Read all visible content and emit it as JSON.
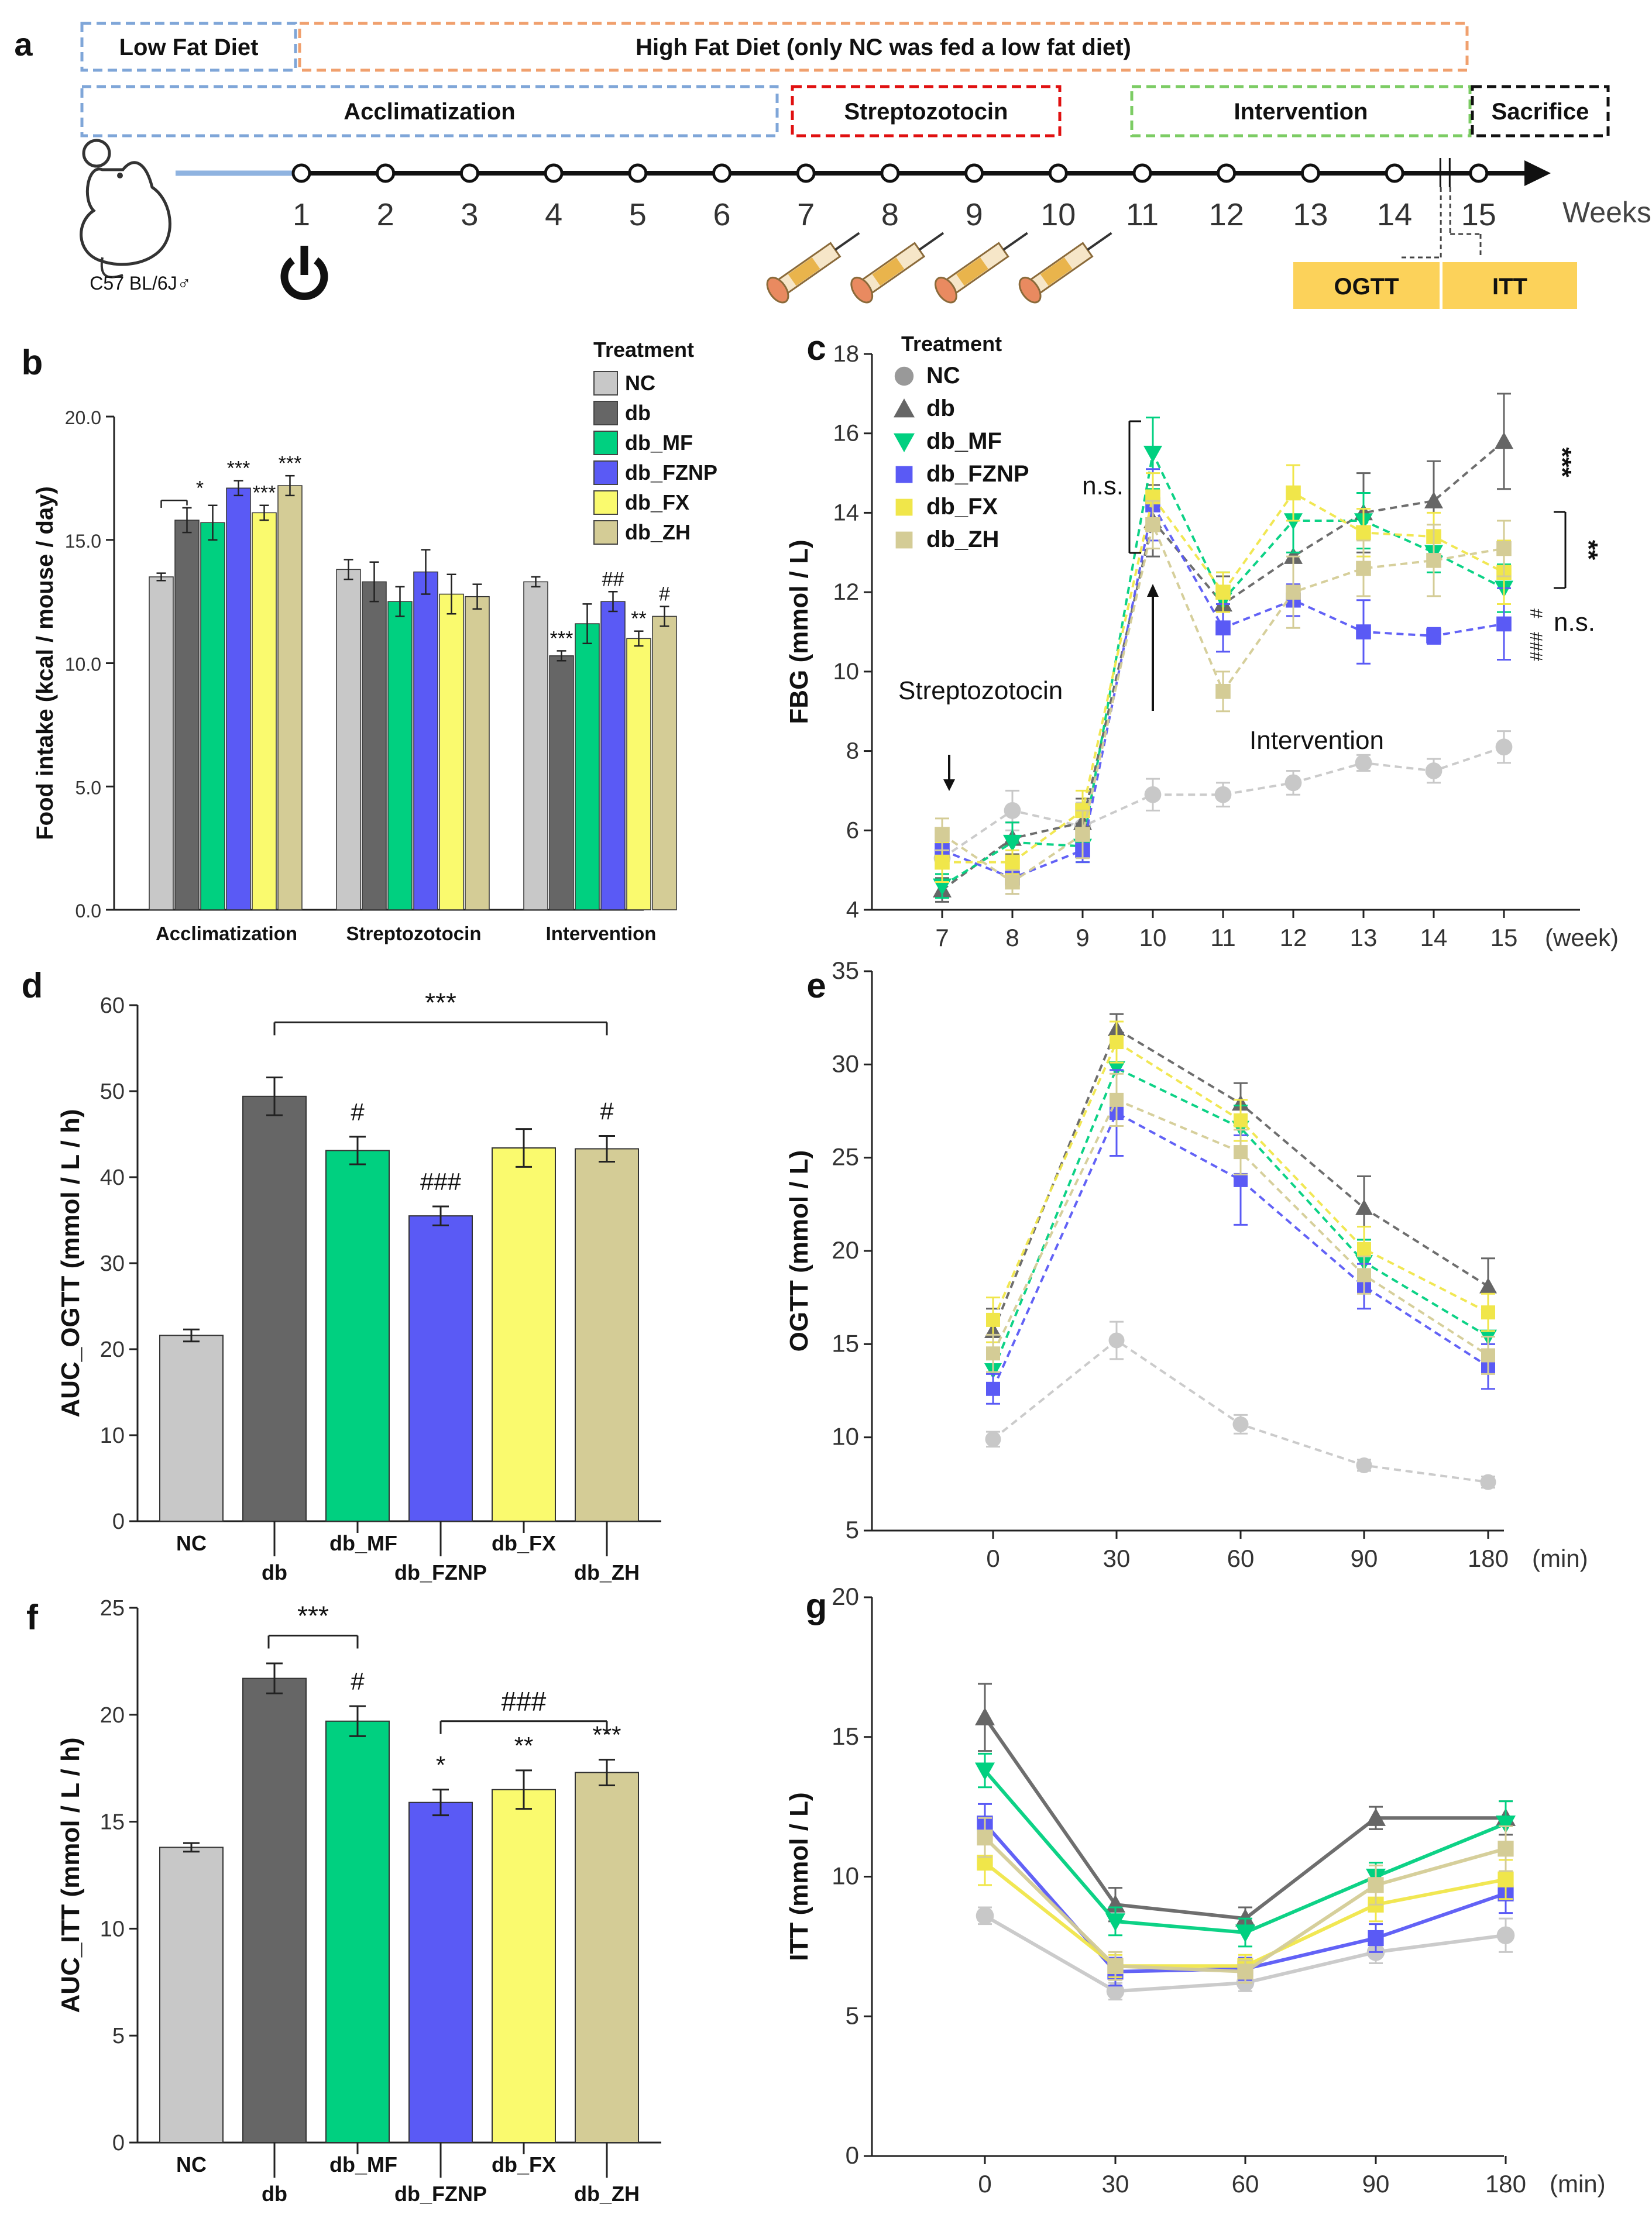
{
  "colors": {
    "NC": "#c8c8c8",
    "db": "#666666",
    "db_MF": "#00d080",
    "db_FZNP": "#5a5af5",
    "db_FX": "#fafa6e",
    "db_ZH": "#d4cc96",
    "blue_box": "#7fa6d8",
    "orange_box": "#f0a06e",
    "red_box": "#e01010",
    "green_box": "#7ccc64",
    "black_box": "#111111",
    "yellow_box": "#fcd25a"
  },
  "legend": {
    "title": "Treatment",
    "groups": [
      "NC",
      "db",
      "db_MF",
      "db_FZNP",
      "db_FX",
      "db_ZH"
    ]
  },
  "timeline": {
    "panel": "a",
    "boxes": {
      "low_fat": "Low Fat Diet",
      "high_fat": "High Fat Diet (only NC was fed a low fat diet)",
      "acclimatization": "Acclimatization",
      "streptozotocin": "Streptozotocin",
      "intervention": "Intervention",
      "sacrifice": "Sacrifice"
    },
    "weeks": [
      "1",
      "2",
      "3",
      "4",
      "5",
      "6",
      "7",
      "8",
      "9",
      "10",
      "11",
      "12",
      "13",
      "14",
      "15"
    ],
    "weeks_label": "Weeks",
    "mouse_label": "C57 BL/6J♂",
    "ogtt": "OGTT",
    "itt": "ITT",
    "injection_weeks": [
      7,
      8,
      9,
      10
    ]
  },
  "chart_data": [
    {
      "panel": "b",
      "type": "bar",
      "ylabel": "Food intake (kcal / mouse / day)",
      "ylim": [
        0,
        20
      ],
      "yticks": [
        "0.0",
        "5.0",
        "10.0",
        "15.0",
        "20.0"
      ],
      "categories": [
        "Acclimatization",
        "Streptozotocin",
        "Intervention"
      ],
      "series": [
        {
          "name": "NC",
          "values": [
            13.5,
            13.8,
            13.3
          ],
          "err": [
            0.15,
            0.4,
            0.2
          ]
        },
        {
          "name": "db",
          "values": [
            15.8,
            13.3,
            10.3
          ],
          "err": [
            0.5,
            0.8,
            0.2
          ]
        },
        {
          "name": "db_MF",
          "values": [
            15.7,
            12.5,
            11.6
          ],
          "err": [
            0.7,
            0.6,
            0.8
          ]
        },
        {
          "name": "db_FZNP",
          "values": [
            17.1,
            13.7,
            12.5
          ],
          "err": [
            0.3,
            0.9,
            0.4
          ]
        },
        {
          "name": "db_FX",
          "values": [
            16.1,
            12.8,
            11.0
          ],
          "err": [
            0.3,
            0.8,
            0.3
          ]
        },
        {
          "name": "db_ZH",
          "values": [
            17.2,
            12.7,
            11.9
          ],
          "err": [
            0.4,
            0.5,
            0.4
          ]
        }
      ],
      "annotations": [
        {
          "text": "*",
          "cat": 0,
          "bar": 1.5
        },
        {
          "text": "***",
          "cat": 0,
          "bar": 3
        },
        {
          "text": "***",
          "cat": 0,
          "bar": 4
        },
        {
          "text": "***",
          "cat": 0,
          "bar": 5
        },
        {
          "text": "***",
          "cat": 2,
          "bar": 1
        },
        {
          "text": "##",
          "cat": 2,
          "bar": 3
        },
        {
          "text": "**",
          "cat": 2,
          "bar": 4
        },
        {
          "text": "#",
          "cat": 2,
          "bar": 5
        }
      ]
    },
    {
      "panel": "c",
      "type": "line",
      "ylabel": "FBG (mmol / L)",
      "xlabel": "(week)",
      "x": [
        7,
        8,
        9,
        10,
        11,
        12,
        13,
        14,
        15
      ],
      "ylim": [
        4,
        18
      ],
      "yticks": [
        "4",
        "6",
        "8",
        "10",
        "12",
        "14",
        "16",
        "18"
      ],
      "series": [
        {
          "name": "NC",
          "values": [
            5.3,
            6.5,
            6.1,
            6.9,
            6.9,
            7.2,
            7.7,
            7.5,
            8.1
          ],
          "err": [
            0.4,
            0.5,
            0.6,
            0.4,
            0.3,
            0.3,
            0.2,
            0.3,
            0.4
          ]
        },
        {
          "name": "db",
          "values": [
            4.5,
            5.8,
            6.2,
            13.8,
            11.7,
            12.9,
            14.0,
            14.3,
            15.8
          ],
          "err": [
            0.3,
            0.4,
            0.6,
            0.9,
            0.7,
            1.0,
            1.0,
            1.0,
            1.2
          ]
        },
        {
          "name": "db_MF",
          "values": [
            4.6,
            5.7,
            5.6,
            15.5,
            11.8,
            13.8,
            13.8,
            13.0,
            12.1
          ],
          "err": [
            0.3,
            0.5,
            0.4,
            0.9,
            0.7,
            0.8,
            0.7,
            0.5,
            0.6
          ]
        },
        {
          "name": "db_FZNP",
          "values": [
            5.5,
            4.8,
            5.5,
            14.2,
            11.1,
            11.8,
            11.0,
            10.9,
            11.2
          ],
          "err": [
            0.4,
            0.4,
            0.3,
            0.9,
            0.6,
            0.4,
            0.8,
            0.2,
            0.9
          ]
        },
        {
          "name": "db_FX",
          "values": [
            5.2,
            5.2,
            6.5,
            14.4,
            12.0,
            14.5,
            13.5,
            13.4,
            12.5
          ],
          "err": [
            0.5,
            0.3,
            0.5,
            0.6,
            0.5,
            0.7,
            0.6,
            0.6,
            0.8
          ]
        },
        {
          "name": "db_ZH",
          "values": [
            5.9,
            4.7,
            5.9,
            13.7,
            9.5,
            12.0,
            12.6,
            12.8,
            13.1
          ],
          "err": [
            0.4,
            0.3,
            0.6,
            0.6,
            0.5,
            0.9,
            0.7,
            0.9,
            0.7
          ]
        }
      ],
      "annotations": {
        "streptozotocin": "Streptozotocin",
        "intervention": "Intervention",
        "ns_left": "n.s.",
        "sig_db": "***",
        "sig_mf": "**",
        "hash_small": "#",
        "hash_fznp": "###",
        "ns_right": "n.s."
      }
    },
    {
      "panel": "d",
      "type": "bar",
      "ylabel": "AUC_OGTT (mmol / L / h)",
      "ylim": [
        0,
        60
      ],
      "yticks": [
        "0",
        "10",
        "20",
        "30",
        "40",
        "50",
        "60"
      ],
      "categories": [
        "NC",
        "db",
        "db_MF",
        "db_FZNP",
        "db_FX",
        "db_ZH"
      ],
      "values": [
        21.6,
        49.4,
        43.1,
        35.5,
        43.4,
        43.3
      ],
      "err": [
        0.7,
        2.2,
        1.6,
        1.1,
        2.2,
        1.5
      ],
      "annotations": [
        {
          "text": "#",
          "bar": 2
        },
        {
          "text": "###",
          "bar": 3
        },
        {
          "text": "#",
          "bar": 5
        }
      ],
      "bracket": {
        "text": "***",
        "from": 1,
        "to": 5
      }
    },
    {
      "panel": "e",
      "type": "line",
      "ylabel": "OGTT (mmol / L)",
      "xlabel": "(min)",
      "categories": [
        "0",
        "30",
        "60",
        "90",
        "180"
      ],
      "ylim": [
        5,
        35
      ],
      "yticks": [
        "5",
        "10",
        "15",
        "20",
        "25",
        "30",
        "35"
      ],
      "series": [
        {
          "name": "NC",
          "values": [
            9.9,
            15.2,
            10.7,
            8.5,
            7.6
          ],
          "err": [
            0.4,
            1.0,
            0.5,
            0.3,
            0.3
          ]
        },
        {
          "name": "db",
          "values": [
            15.7,
            31.9,
            27.9,
            22.3,
            18.1
          ],
          "err": [
            1.2,
            0.8,
            1.1,
            1.7,
            1.5
          ]
        },
        {
          "name": "db_MF",
          "values": [
            13.6,
            29.8,
            26.6,
            19.4,
            15.4
          ],
          "err": [
            0.9,
            1.6,
            1.2,
            1.2,
            1.0
          ]
        },
        {
          "name": "db_FZNP",
          "values": [
            12.6,
            27.4,
            23.8,
            18.1,
            13.8
          ],
          "err": [
            0.8,
            2.3,
            2.4,
            1.2,
            1.2
          ]
        },
        {
          "name": "db_FX",
          "values": [
            16.3,
            31.2,
            27.0,
            20.1,
            16.7
          ],
          "err": [
            1.2,
            1.1,
            1.1,
            1.2,
            1.0
          ]
        },
        {
          "name": "db_ZH",
          "values": [
            14.5,
            28.1,
            25.3,
            18.7,
            14.4
          ],
          "err": [
            1.0,
            1.4,
            1.2,
            1.0,
            1.0
          ]
        }
      ]
    },
    {
      "panel": "f",
      "type": "bar",
      "ylabel": "AUC_ITT (mmol / L / h)",
      "ylim": [
        0,
        25
      ],
      "yticks": [
        "0",
        "5",
        "10",
        "15",
        "20",
        "25"
      ],
      "categories": [
        "NC",
        "db",
        "db_MF",
        "db_FZNP",
        "db_FX",
        "db_ZH"
      ],
      "values": [
        13.8,
        21.7,
        19.7,
        15.9,
        16.5,
        17.3
      ],
      "err": [
        0.2,
        0.7,
        0.7,
        0.6,
        0.9,
        0.6
      ],
      "annotations": [
        {
          "text": "#",
          "bar": 2
        },
        {
          "text": "*",
          "bar": 3
        },
        {
          "text": "**",
          "bar": 4
        },
        {
          "text": "***",
          "bar": 5
        }
      ],
      "bracket": {
        "text": "***",
        "from": 1,
        "to": 2
      },
      "bracket2": {
        "text": "###",
        "from": 3,
        "to": 5
      }
    },
    {
      "panel": "g",
      "type": "line",
      "ylabel": "ITT (mmol / L)",
      "xlabel": "(min)",
      "categories": [
        "0",
        "30",
        "60",
        "90",
        "180"
      ],
      "ylim": [
        0,
        20
      ],
      "yticks": [
        "0",
        "5",
        "10",
        "15",
        "20"
      ],
      "series": [
        {
          "name": "NC",
          "values": [
            8.6,
            5.9,
            6.2,
            7.3,
            7.9
          ],
          "err": [
            0.3,
            0.3,
            0.3,
            0.4,
            0.6
          ]
        },
        {
          "name": "db",
          "values": [
            15.7,
            9.0,
            8.5,
            12.1,
            12.1
          ],
          "err": [
            1.2,
            0.6,
            0.4,
            0.4,
            0.6
          ]
        },
        {
          "name": "db_MF",
          "values": [
            13.8,
            8.4,
            8.0,
            10.0,
            11.9
          ],
          "err": [
            0.6,
            0.5,
            0.5,
            0.5,
            0.8
          ]
        },
        {
          "name": "db_FZNP",
          "values": [
            11.9,
            6.6,
            6.7,
            7.8,
            9.4
          ],
          "err": [
            0.7,
            0.5,
            0.4,
            0.5,
            0.7
          ]
        },
        {
          "name": "db_FX",
          "values": [
            10.5,
            6.8,
            6.8,
            9.0,
            9.9
          ],
          "err": [
            0.8,
            0.4,
            0.4,
            0.6,
            0.7
          ]
        },
        {
          "name": "db_ZH",
          "values": [
            11.4,
            6.8,
            6.6,
            9.7,
            11.0
          ],
          "err": [
            0.7,
            0.5,
            0.4,
            0.7,
            0.8
          ]
        }
      ]
    }
  ]
}
